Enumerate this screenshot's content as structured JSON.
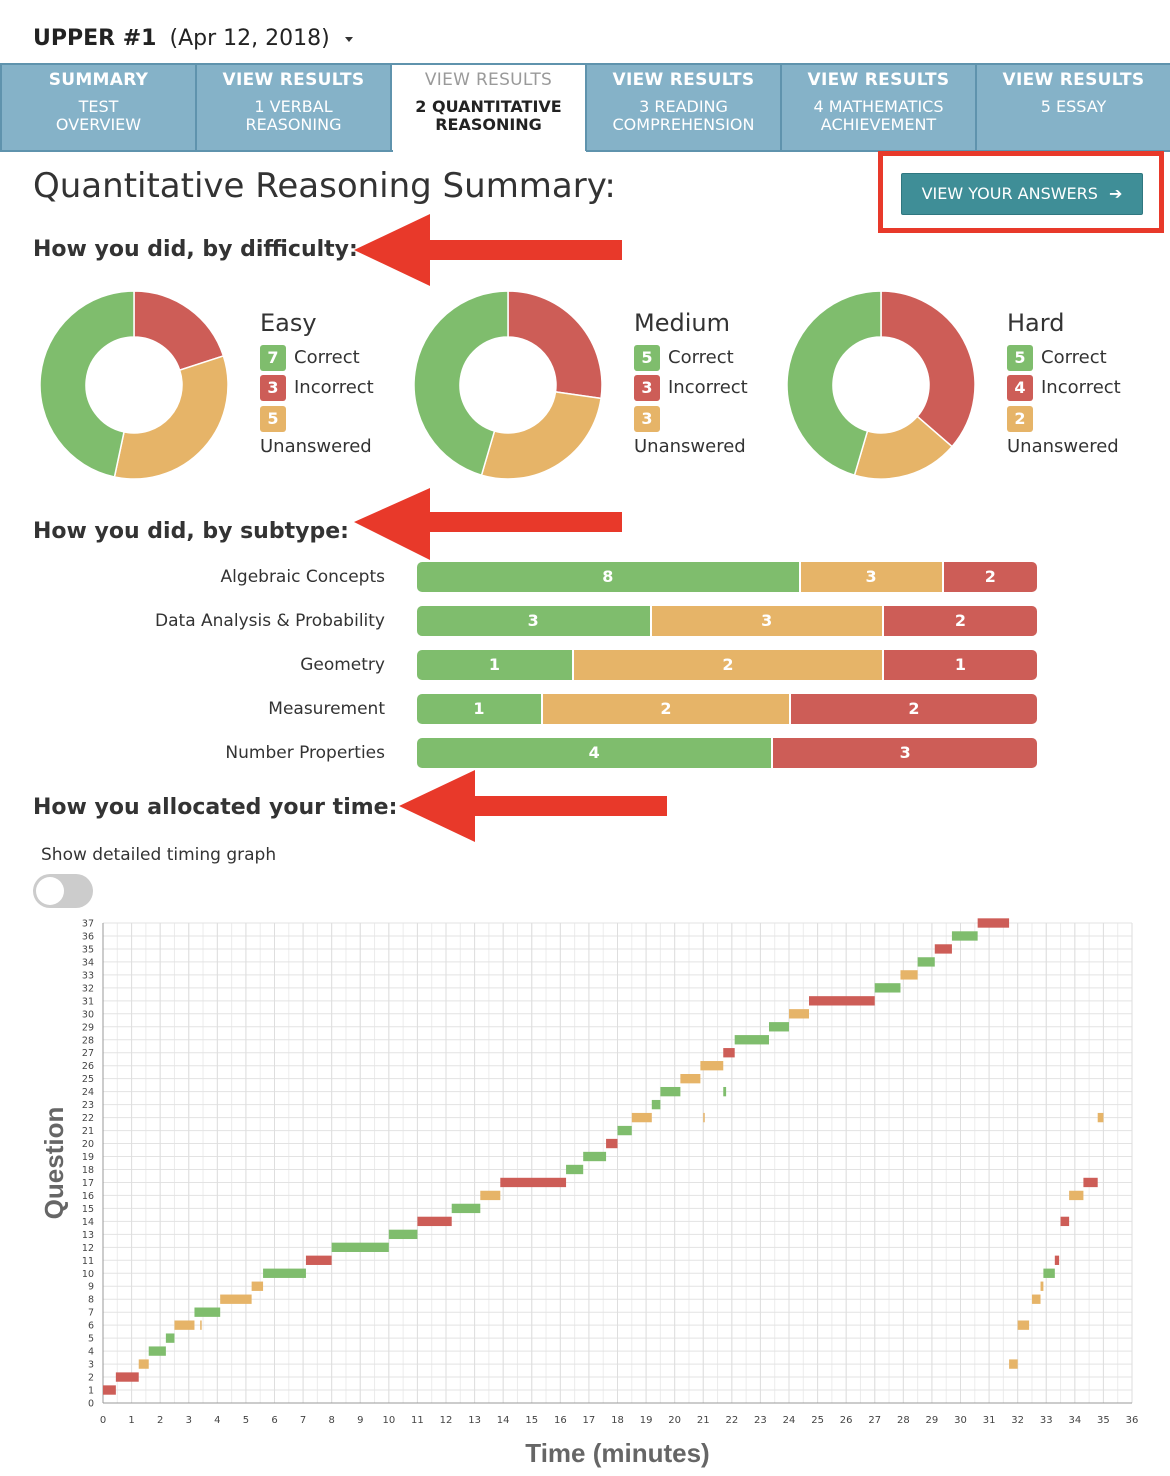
{
  "header": {
    "test_name": "UPPER #1",
    "test_date": "(Apr 12, 2018)"
  },
  "tabs": [
    {
      "line1": "SUMMARY",
      "line2": "TEST\nOVERVIEW",
      "active": false
    },
    {
      "line1": "VIEW RESULTS",
      "line2": "1 VERBAL\nREASONING",
      "active": false
    },
    {
      "line1": "VIEW RESULTS",
      "line2": "2 QUANTITATIVE\nREASONING",
      "active": true
    },
    {
      "line1": "VIEW RESULTS",
      "line2": "3 READING\nCOMPREHENSION",
      "active": false
    },
    {
      "line1": "VIEW RESULTS",
      "line2": "4 MATHEMATICS\nACHIEVEMENT",
      "active": false
    },
    {
      "line1": "VIEW RESULTS",
      "line2": "5 ESSAY",
      "active": false
    }
  ],
  "summary": {
    "title": "Quantitative Reasoning Summary:",
    "view_answers_label": "VIEW YOUR ANSWERS"
  },
  "colors": {
    "correct": "#7fbd6d",
    "incorrect": "#cd5d57",
    "unanswered": "#e6b468",
    "tab_bg": "#85b2c8",
    "button": "#3f8e97",
    "annotation_red": "#e8392a"
  },
  "difficulty": {
    "heading": "How you did, by difficulty:",
    "groups": [
      {
        "name": "Easy",
        "correct": 7,
        "incorrect": 3,
        "unanswered": 5
      },
      {
        "name": "Medium",
        "correct": 5,
        "incorrect": 3,
        "unanswered": 3
      },
      {
        "name": "Hard",
        "correct": 5,
        "incorrect": 4,
        "unanswered": 2
      }
    ],
    "labels": {
      "correct": "Correct",
      "incorrect": "Incorrect",
      "unanswered": "Unanswered"
    }
  },
  "subtype": {
    "heading": "How you did, by subtype:",
    "rows": [
      {
        "name": "Algebraic Concepts",
        "correct": 8,
        "unanswered": 3,
        "incorrect": 2
      },
      {
        "name": "Data Analysis & Probability",
        "correct": 3,
        "unanswered": 3,
        "incorrect": 2
      },
      {
        "name": "Geometry",
        "correct": 1,
        "unanswered": 2,
        "incorrect": 1
      },
      {
        "name": "Measurement",
        "correct": 1,
        "unanswered": 2,
        "incorrect": 2
      },
      {
        "name": "Number Properties",
        "correct": 4,
        "unanswered": null,
        "incorrect": 3
      }
    ]
  },
  "timing": {
    "heading": "How you allocated your time:",
    "toggle_label": "Show detailed timing graph",
    "toggle_on": false
  },
  "chart_data": {
    "type": "gantt",
    "xlabel": "Time (minutes)",
    "ylabel": "Question",
    "xlim": [
      0,
      36
    ],
    "ylim": [
      0,
      37
    ],
    "grid": true,
    "x_ticks": [
      0,
      1,
      2,
      3,
      4,
      5,
      6,
      7,
      8,
      9,
      10,
      11,
      12,
      13,
      14,
      15,
      16,
      17,
      18,
      19,
      20,
      21,
      22,
      23,
      24,
      25,
      26,
      27,
      28,
      29,
      30,
      31,
      32,
      33,
      34,
      35,
      36
    ],
    "y_ticks": [
      0,
      1,
      2,
      3,
      4,
      5,
      6,
      7,
      8,
      9,
      10,
      11,
      12,
      13,
      14,
      15,
      16,
      17,
      18,
      19,
      20,
      21,
      22,
      23,
      24,
      25,
      26,
      27,
      28,
      29,
      30,
      31,
      32,
      33,
      34,
      35,
      36,
      37
    ],
    "segments": [
      {
        "q": 1,
        "start": 0.0,
        "end": 0.45,
        "status": "incorrect"
      },
      {
        "q": 2,
        "start": 0.45,
        "end": 1.25,
        "status": "incorrect"
      },
      {
        "q": 3,
        "start": 1.25,
        "end": 1.6,
        "status": "unanswered"
      },
      {
        "q": 4,
        "start": 1.6,
        "end": 2.2,
        "status": "correct"
      },
      {
        "q": 5,
        "start": 2.2,
        "end": 2.5,
        "status": "correct"
      },
      {
        "q": 6,
        "start": 2.5,
        "end": 3.2,
        "status": "unanswered"
      },
      {
        "q": 6,
        "start": 3.4,
        "end": 3.45,
        "status": "unanswered"
      },
      {
        "q": 7,
        "start": 3.2,
        "end": 4.1,
        "status": "correct"
      },
      {
        "q": 8,
        "start": 4.1,
        "end": 5.2,
        "status": "unanswered"
      },
      {
        "q": 9,
        "start": 5.2,
        "end": 5.6,
        "status": "unanswered"
      },
      {
        "q": 10,
        "start": 5.6,
        "end": 7.1,
        "status": "correct"
      },
      {
        "q": 11,
        "start": 7.1,
        "end": 8.0,
        "status": "incorrect"
      },
      {
        "q": 12,
        "start": 8.0,
        "end": 10.0,
        "status": "correct"
      },
      {
        "q": 13,
        "start": 10.0,
        "end": 11.0,
        "status": "correct"
      },
      {
        "q": 14,
        "start": 11.0,
        "end": 12.2,
        "status": "incorrect"
      },
      {
        "q": 15,
        "start": 12.2,
        "end": 13.2,
        "status": "correct"
      },
      {
        "q": 16,
        "start": 13.2,
        "end": 13.9,
        "status": "unanswered"
      },
      {
        "q": 17,
        "start": 13.9,
        "end": 16.2,
        "status": "incorrect"
      },
      {
        "q": 18,
        "start": 16.2,
        "end": 16.8,
        "status": "correct"
      },
      {
        "q": 19,
        "start": 16.8,
        "end": 17.6,
        "status": "correct"
      },
      {
        "q": 20,
        "start": 17.6,
        "end": 18.0,
        "status": "incorrect"
      },
      {
        "q": 21,
        "start": 18.0,
        "end": 18.5,
        "status": "correct"
      },
      {
        "q": 22,
        "start": 18.5,
        "end": 19.2,
        "status": "unanswered"
      },
      {
        "q": 22,
        "start": 21.0,
        "end": 21.05,
        "status": "unanswered"
      },
      {
        "q": 23,
        "start": 19.2,
        "end": 19.5,
        "status": "correct"
      },
      {
        "q": 24,
        "start": 19.5,
        "end": 20.2,
        "status": "correct"
      },
      {
        "q": 24,
        "start": 21.7,
        "end": 21.8,
        "status": "correct"
      },
      {
        "q": 25,
        "start": 20.2,
        "end": 20.9,
        "status": "unanswered"
      },
      {
        "q": 26,
        "start": 20.9,
        "end": 21.7,
        "status": "unanswered"
      },
      {
        "q": 27,
        "start": 21.7,
        "end": 22.1,
        "status": "incorrect"
      },
      {
        "q": 28,
        "start": 22.1,
        "end": 23.3,
        "status": "correct"
      },
      {
        "q": 29,
        "start": 23.3,
        "end": 24.0,
        "status": "correct"
      },
      {
        "q": 30,
        "start": 24.0,
        "end": 24.7,
        "status": "unanswered"
      },
      {
        "q": 31,
        "start": 24.7,
        "end": 27.0,
        "status": "incorrect"
      },
      {
        "q": 32,
        "start": 27.0,
        "end": 27.9,
        "status": "correct"
      },
      {
        "q": 33,
        "start": 27.9,
        "end": 28.5,
        "status": "unanswered"
      },
      {
        "q": 34,
        "start": 28.5,
        "end": 29.1,
        "status": "correct"
      },
      {
        "q": 35,
        "start": 29.1,
        "end": 29.7,
        "status": "incorrect"
      },
      {
        "q": 36,
        "start": 29.7,
        "end": 30.6,
        "status": "correct"
      },
      {
        "q": 37,
        "start": 30.6,
        "end": 31.7,
        "status": "incorrect"
      },
      {
        "q": 3,
        "start": 31.7,
        "end": 32.0,
        "status": "unanswered"
      },
      {
        "q": 6,
        "start": 32.0,
        "end": 32.4,
        "status": "unanswered"
      },
      {
        "q": 8,
        "start": 32.5,
        "end": 32.8,
        "status": "unanswered"
      },
      {
        "q": 9,
        "start": 32.8,
        "end": 32.9,
        "status": "unanswered"
      },
      {
        "q": 10,
        "start": 32.9,
        "end": 33.3,
        "status": "correct"
      },
      {
        "q": 11,
        "start": 33.3,
        "end": 33.45,
        "status": "incorrect"
      },
      {
        "q": 14,
        "start": 33.5,
        "end": 33.8,
        "status": "incorrect"
      },
      {
        "q": 16,
        "start": 33.8,
        "end": 34.3,
        "status": "unanswered"
      },
      {
        "q": 17,
        "start": 34.3,
        "end": 34.8,
        "status": "incorrect"
      },
      {
        "q": 22,
        "start": 34.8,
        "end": 35.0,
        "status": "unanswered"
      }
    ]
  }
}
